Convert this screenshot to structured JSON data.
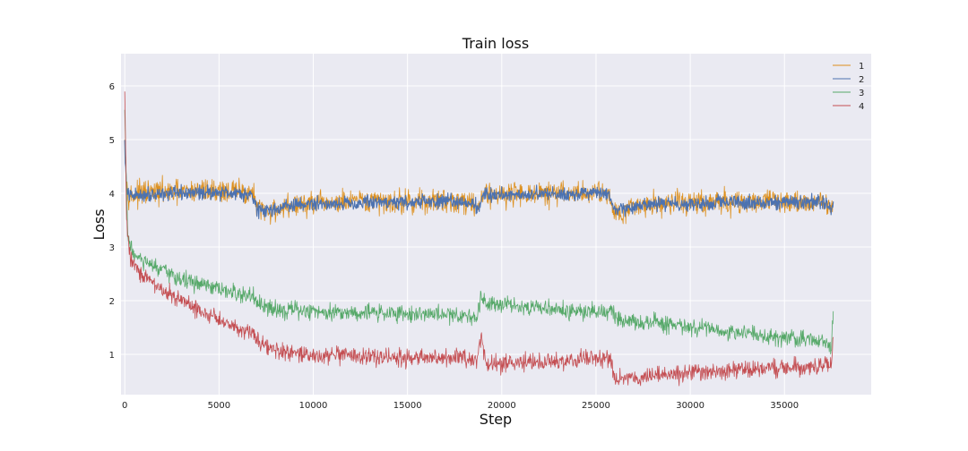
{
  "chart_data": {
    "type": "line",
    "title": "Train loss",
    "xlabel": "Step",
    "ylabel": "Loss",
    "xlim": [
      -200,
      39600
    ],
    "ylim": [
      0.25,
      6.6
    ],
    "xticks": [
      0,
      5000,
      10000,
      15000,
      20000,
      25000,
      30000,
      35000
    ],
    "yticks": [
      1,
      2,
      3,
      4,
      5,
      6
    ],
    "grid": true,
    "legend_position": "top-right",
    "background": "#eaeaf2",
    "series": [
      {
        "name": "1",
        "color": "#dd8f1c",
        "x": [
          0,
          100,
          300,
          1000,
          2000,
          3000,
          4000,
          5000,
          6000,
          6800,
          7000,
          7200,
          8000,
          9000,
          10000,
          11000,
          12000,
          13000,
          14000,
          15000,
          16000,
          17000,
          18000,
          18600,
          18800,
          19000,
          20000,
          21000,
          22000,
          23000,
          24000,
          25000,
          25700,
          25900,
          26100,
          27000,
          28000,
          29000,
          30000,
          31000,
          32000,
          33000,
          34000,
          35000,
          36000,
          37000,
          37500,
          37600
        ],
        "y": [
          5.2,
          4.1,
          3.95,
          4.0,
          4.02,
          4.0,
          4.05,
          4.05,
          4.03,
          4.0,
          3.75,
          3.65,
          3.7,
          3.78,
          3.8,
          3.82,
          3.83,
          3.84,
          3.85,
          3.84,
          3.85,
          3.86,
          3.86,
          3.8,
          3.75,
          4.0,
          3.98,
          4.0,
          3.98,
          4.0,
          4.0,
          4.02,
          4.0,
          3.7,
          3.65,
          3.75,
          3.8,
          3.82,
          3.83,
          3.82,
          3.84,
          3.83,
          3.85,
          3.85,
          3.84,
          3.85,
          3.75,
          3.9
        ],
        "noise": 0.14
      },
      {
        "name": "2",
        "color": "#4c72b0",
        "x": [
          0,
          100,
          300,
          1000,
          2000,
          3000,
          4000,
          5000,
          6000,
          6800,
          7000,
          7200,
          8000,
          9000,
          10000,
          11000,
          12000,
          13000,
          14000,
          15000,
          16000,
          17000,
          18000,
          18600,
          18800,
          19000,
          20000,
          21000,
          22000,
          23000,
          24000,
          25000,
          25700,
          25900,
          26100,
          27000,
          28000,
          29000,
          30000,
          31000,
          32000,
          33000,
          34000,
          35000,
          36000,
          37000,
          37500,
          37600
        ],
        "y": [
          4.9,
          4.0,
          3.95,
          3.98,
          4.0,
          3.99,
          4.02,
          4.02,
          4.01,
          3.98,
          3.72,
          3.65,
          3.72,
          3.78,
          3.8,
          3.81,
          3.82,
          3.83,
          3.84,
          3.83,
          3.84,
          3.85,
          3.85,
          3.78,
          3.72,
          3.98,
          3.97,
          3.99,
          3.98,
          3.99,
          3.99,
          4.0,
          3.98,
          3.7,
          3.66,
          3.74,
          3.79,
          3.81,
          3.82,
          3.81,
          3.83,
          3.82,
          3.84,
          3.84,
          3.83,
          3.84,
          3.72,
          3.8
        ],
        "noise": 0.08
      },
      {
        "name": "3",
        "color": "#55a868",
        "x": [
          0,
          150,
          500,
          1000,
          2000,
          3000,
          4000,
          5000,
          6000,
          6800,
          7000,
          7500,
          8000,
          9000,
          10000,
          11000,
          12000,
          13000,
          14000,
          15000,
          16000,
          17000,
          18000,
          18700,
          18900,
          19200,
          20000,
          21000,
          22000,
          23000,
          24000,
          25000,
          25800,
          26200,
          27000,
          28000,
          29000,
          30000,
          31000,
          32000,
          33000,
          34000,
          35000,
          36000,
          37000,
          37500,
          37600
        ],
        "y": [
          5.5,
          3.2,
          2.85,
          2.72,
          2.55,
          2.4,
          2.3,
          2.2,
          2.12,
          2.08,
          1.95,
          1.85,
          1.85,
          1.82,
          1.8,
          1.8,
          1.78,
          1.78,
          1.77,
          1.76,
          1.75,
          1.74,
          1.73,
          1.7,
          2.05,
          1.98,
          1.96,
          1.9,
          1.87,
          1.82,
          1.8,
          1.8,
          1.78,
          1.65,
          1.62,
          1.58,
          1.55,
          1.5,
          1.46,
          1.42,
          1.4,
          1.36,
          1.32,
          1.28,
          1.22,
          1.18,
          1.85
        ],
        "noise": 0.1
      },
      {
        "name": "4",
        "color": "#c44e52",
        "x": [
          0,
          100,
          300,
          1000,
          2000,
          3000,
          4000,
          5000,
          6000,
          6800,
          7000,
          7500,
          8000,
          9000,
          10000,
          11000,
          12000,
          13000,
          14000,
          15000,
          16000,
          17000,
          18000,
          18700,
          18900,
          19200,
          20000,
          21000,
          22000,
          23000,
          24000,
          25000,
          25800,
          26000,
          27000,
          28000,
          29000,
          30000,
          31000,
          32000,
          33000,
          34000,
          35000,
          36000,
          37000,
          37500,
          37600
        ],
        "y": [
          5.9,
          3.4,
          2.8,
          2.45,
          2.2,
          2.0,
          1.8,
          1.65,
          1.5,
          1.4,
          1.3,
          1.18,
          1.05,
          1.0,
          0.98,
          0.97,
          0.96,
          0.95,
          0.95,
          0.93,
          0.93,
          0.92,
          0.92,
          0.9,
          1.3,
          0.85,
          0.82,
          0.84,
          0.86,
          0.88,
          0.9,
          0.92,
          0.9,
          0.55,
          0.58,
          0.6,
          0.62,
          0.65,
          0.68,
          0.7,
          0.72,
          0.74,
          0.76,
          0.78,
          0.8,
          0.82,
          1.4
        ],
        "noise": 0.1
      }
    ]
  }
}
